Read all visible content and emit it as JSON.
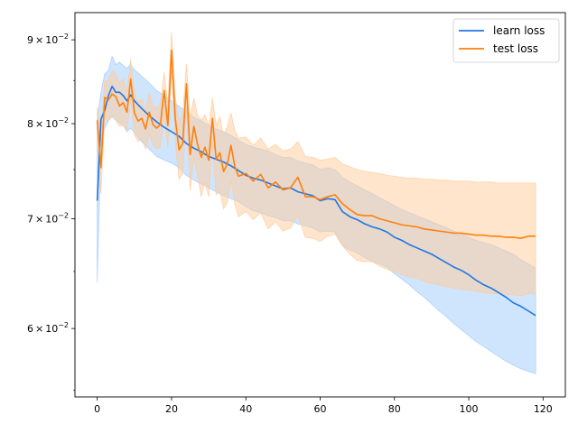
{
  "chart_data": {
    "type": "line",
    "title": "",
    "xlabel": "",
    "ylabel": "",
    "xlim": [
      -6,
      126
    ],
    "ylim": [
      0.0545,
      0.0935
    ],
    "yscale": "log",
    "grid": false,
    "legend": "top-right",
    "xticks": [
      0,
      20,
      40,
      60,
      80,
      100,
      120
    ],
    "xtick_labels": [
      "0",
      "20",
      "40",
      "60",
      "80",
      "100",
      "120"
    ],
    "yticks": [
      0.06,
      0.07,
      0.08,
      0.09
    ],
    "ytick_labels": [
      {
        "mantissa": "6",
        "multiply": "×",
        "base": "10",
        "exp": "−2"
      },
      {
        "mantissa": "7",
        "multiply": "×",
        "base": "10",
        "exp": "−2"
      },
      {
        "mantissa": "8",
        "multiply": "×",
        "base": "10",
        "exp": "−2"
      },
      {
        "mantissa": "9",
        "multiply": "×",
        "base": "10",
        "exp": "−2"
      }
    ],
    "series": [
      {
        "name": "learn loss",
        "color": "#1f77e4",
        "band_color": "#9fcbfb",
        "x": [
          0,
          1,
          2,
          3,
          4,
          5,
          6,
          7,
          8,
          9,
          10,
          12,
          14,
          16,
          18,
          20,
          22,
          24,
          26,
          28,
          30,
          32,
          34,
          36,
          38,
          40,
          42,
          44,
          46,
          48,
          50,
          52,
          54,
          56,
          58,
          60,
          62,
          64,
          66,
          68,
          70,
          72,
          74,
          76,
          78,
          80,
          82,
          84,
          86,
          88,
          90,
          92,
          94,
          96,
          98,
          100,
          102,
          104,
          106,
          108,
          110,
          112,
          114,
          116,
          118
        ],
        "mean": [
          0.0718,
          0.0805,
          0.0815,
          0.0832,
          0.0843,
          0.0836,
          0.0836,
          0.0832,
          0.0826,
          0.0833,
          0.0826,
          0.0817,
          0.0809,
          0.0802,
          0.0796,
          0.0791,
          0.0786,
          0.0778,
          0.0773,
          0.0769,
          0.0764,
          0.0761,
          0.0758,
          0.0754,
          0.0749,
          0.0744,
          0.0741,
          0.0739,
          0.0736,
          0.0733,
          0.073,
          0.0731,
          0.0727,
          0.0725,
          0.0723,
          0.0718,
          0.072,
          0.0719,
          0.0707,
          0.0702,
          0.0699,
          0.0695,
          0.0692,
          0.069,
          0.0687,
          0.0682,
          0.0679,
          0.0675,
          0.0672,
          0.0669,
          0.0666,
          0.0662,
          0.0658,
          0.0654,
          0.0651,
          0.0647,
          0.0642,
          0.0638,
          0.0635,
          0.0631,
          0.0627,
          0.0622,
          0.0619,
          0.0615,
          0.0611
        ],
        "upper": [
          0.0805,
          0.0836,
          0.0858,
          0.0862,
          0.0879,
          0.0869,
          0.0872,
          0.0868,
          0.0865,
          0.0869,
          0.0863,
          0.0855,
          0.0847,
          0.0838,
          0.0832,
          0.0826,
          0.082,
          0.0813,
          0.0807,
          0.0803,
          0.0798,
          0.0794,
          0.0791,
          0.0787,
          0.0782,
          0.0777,
          0.0774,
          0.0772,
          0.077,
          0.0766,
          0.0763,
          0.0763,
          0.0759,
          0.0757,
          0.0755,
          0.075,
          0.0752,
          0.075,
          0.0742,
          0.0737,
          0.0733,
          0.0729,
          0.0725,
          0.0721,
          0.0717,
          0.0713,
          0.0709,
          0.0706,
          0.0703,
          0.07,
          0.0697,
          0.0694,
          0.0691,
          0.0688,
          0.0685,
          0.0682,
          0.0679,
          0.0677,
          0.0675,
          0.0672,
          0.0669,
          0.0666,
          0.0661,
          0.0657,
          0.0653
        ],
        "lower": [
          0.064,
          0.0778,
          0.0795,
          0.0803,
          0.0808,
          0.0804,
          0.0801,
          0.0798,
          0.0791,
          0.0795,
          0.079,
          0.078,
          0.0772,
          0.0764,
          0.076,
          0.0757,
          0.0752,
          0.0744,
          0.0739,
          0.0735,
          0.0731,
          0.0727,
          0.0723,
          0.072,
          0.0717,
          0.0712,
          0.0708,
          0.0706,
          0.0703,
          0.0701,
          0.0698,
          0.0698,
          0.0695,
          0.0693,
          0.0691,
          0.0687,
          0.0688,
          0.0687,
          0.0674,
          0.067,
          0.0667,
          0.0663,
          0.0659,
          0.0657,
          0.0654,
          0.0648,
          0.0643,
          0.0638,
          0.0632,
          0.0627,
          0.0621,
          0.0615,
          0.061,
          0.0604,
          0.0599,
          0.0594,
          0.0589,
          0.0585,
          0.0581,
          0.0577,
          0.0573,
          0.057,
          0.0567,
          0.0565,
          0.0563
        ]
      },
      {
        "name": "test loss",
        "color": "#ff7f0e",
        "band_color": "#ffcb9a",
        "x": [
          0,
          1,
          2,
          3,
          4,
          5,
          6,
          7,
          8,
          9,
          10,
          11,
          12,
          13,
          14,
          15,
          16,
          17,
          18,
          19,
          20,
          21,
          22,
          23,
          24,
          25,
          26,
          27,
          28,
          29,
          30,
          31,
          32,
          33,
          34,
          35,
          36,
          37,
          38,
          40,
          42,
          44,
          46,
          48,
          50,
          52,
          54,
          56,
          58,
          60,
          62,
          64,
          66,
          68,
          70,
          72,
          74,
          76,
          78,
          80,
          82,
          84,
          86,
          88,
          90,
          92,
          94,
          96,
          98,
          100,
          102,
          104,
          106,
          108,
          110,
          112,
          114,
          116,
          118
        ],
        "mean": [
          0.0804,
          0.0752,
          0.083,
          0.0827,
          0.0834,
          0.0831,
          0.082,
          0.0824,
          0.0813,
          0.0852,
          0.0812,
          0.0803,
          0.0806,
          0.0794,
          0.0813,
          0.0799,
          0.0795,
          0.0799,
          0.0838,
          0.0798,
          0.0887,
          0.0806,
          0.0771,
          0.0778,
          0.0846,
          0.0766,
          0.0797,
          0.0777,
          0.0763,
          0.0774,
          0.076,
          0.0806,
          0.0761,
          0.0768,
          0.0748,
          0.0756,
          0.0776,
          0.0754,
          0.0743,
          0.0746,
          0.0738,
          0.0745,
          0.0731,
          0.0737,
          0.0729,
          0.0731,
          0.0742,
          0.0722,
          0.0722,
          0.0719,
          0.0722,
          0.0724,
          0.0715,
          0.0709,
          0.0704,
          0.0703,
          0.0703,
          0.07,
          0.0698,
          0.0696,
          0.0694,
          0.0693,
          0.0692,
          0.069,
          0.0689,
          0.0688,
          0.0687,
          0.0686,
          0.0686,
          0.0685,
          0.0684,
          0.0684,
          0.0683,
          0.0683,
          0.0682,
          0.0682,
          0.0681,
          0.0683,
          0.0683
        ],
        "upper": [
          0.0819,
          0.079,
          0.0849,
          0.085,
          0.0862,
          0.0858,
          0.0846,
          0.0852,
          0.0837,
          0.0876,
          0.0835,
          0.0825,
          0.0828,
          0.0815,
          0.0836,
          0.082,
          0.0817,
          0.0823,
          0.086,
          0.082,
          0.091,
          0.083,
          0.0803,
          0.0809,
          0.087,
          0.0806,
          0.0829,
          0.0809,
          0.0804,
          0.081,
          0.0797,
          0.0829,
          0.0798,
          0.0808,
          0.0786,
          0.0797,
          0.0812,
          0.0793,
          0.0784,
          0.0785,
          0.0776,
          0.0784,
          0.0772,
          0.0777,
          0.077,
          0.0772,
          0.078,
          0.0764,
          0.0763,
          0.076,
          0.0761,
          0.0763,
          0.0756,
          0.0753,
          0.075,
          0.0748,
          0.0747,
          0.0746,
          0.0744,
          0.0743,
          0.0742,
          0.0741,
          0.0741,
          0.074,
          0.074,
          0.0739,
          0.0739,
          0.0738,
          0.0738,
          0.0738,
          0.0737,
          0.0737,
          0.0737,
          0.0736,
          0.0736,
          0.0736,
          0.0736,
          0.0736,
          0.0736
        ],
        "lower": [
          0.0785,
          0.0725,
          0.0808,
          0.0803,
          0.0809,
          0.0804,
          0.0797,
          0.0798,
          0.0792,
          0.0828,
          0.0788,
          0.078,
          0.0784,
          0.0772,
          0.0789,
          0.0776,
          0.0772,
          0.0774,
          0.0812,
          0.0774,
          0.0862,
          0.078,
          0.074,
          0.0746,
          0.0818,
          0.0728,
          0.0763,
          0.0744,
          0.0722,
          0.0738,
          0.0722,
          0.0778,
          0.0724,
          0.0728,
          0.071,
          0.0716,
          0.0739,
          0.0715,
          0.0702,
          0.0707,
          0.0699,
          0.0706,
          0.069,
          0.0697,
          0.0688,
          0.0691,
          0.0703,
          0.0682,
          0.0681,
          0.0678,
          0.0683,
          0.0685,
          0.0674,
          0.0666,
          0.066,
          0.0659,
          0.0659,
          0.0655,
          0.0652,
          0.065,
          0.0647,
          0.0645,
          0.0644,
          0.0641,
          0.0639,
          0.0638,
          0.0636,
          0.0635,
          0.0634,
          0.0633,
          0.0632,
          0.0631,
          0.063,
          0.063,
          0.0629,
          0.0629,
          0.0628,
          0.063,
          0.063
        ]
      }
    ]
  }
}
